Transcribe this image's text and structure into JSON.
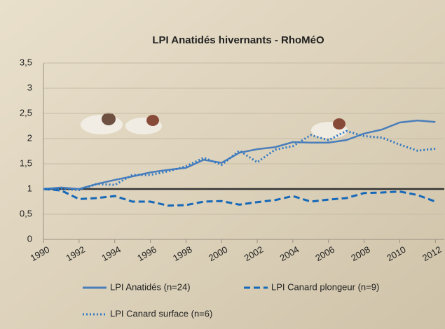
{
  "chart_data": {
    "type": "line",
    "title": "LPI Anatidés hivernants - RhoMéO",
    "x": [
      1990,
      1991,
      1992,
      1993,
      1994,
      1995,
      1996,
      1997,
      1998,
      1999,
      2000,
      2001,
      2002,
      2003,
      2004,
      2005,
      2006,
      2007,
      2008,
      2009,
      2010,
      2011,
      2012
    ],
    "series": [
      {
        "name": "LPI Anatidés (n=24)",
        "color": "#4a7ebb",
        "dash": "solid",
        "values": [
          1.0,
          1.03,
          1.0,
          1.1,
          1.18,
          1.25,
          1.33,
          1.38,
          1.42,
          1.58,
          1.52,
          1.72,
          1.79,
          1.83,
          1.93,
          1.92,
          1.92,
          1.97,
          2.1,
          2.18,
          2.32,
          2.36,
          2.33
        ]
      },
      {
        "name": "LPI Canard plongeur (n=9)",
        "color": "#1668b8",
        "dash": "dashed",
        "values": [
          1.0,
          0.97,
          0.8,
          0.82,
          0.86,
          0.75,
          0.75,
          0.67,
          0.68,
          0.75,
          0.76,
          0.69,
          0.74,
          0.78,
          0.86,
          0.75,
          0.79,
          0.82,
          0.92,
          0.93,
          0.95,
          0.88,
          0.75
        ]
      },
      {
        "name": "LPI Canard surface (n=6)",
        "color": "#2f78c4",
        "dash": "dotted",
        "values": [
          1.0,
          1.0,
          0.98,
          1.1,
          1.08,
          1.28,
          1.28,
          1.35,
          1.45,
          1.62,
          1.48,
          1.76,
          1.53,
          1.78,
          1.85,
          2.07,
          1.97,
          2.15,
          2.05,
          2.02,
          1.88,
          1.76,
          1.8
        ]
      }
    ],
    "xlim": [
      1990,
      2012.5
    ],
    "xticks": [
      1990,
      1992,
      1994,
      1996,
      1998,
      2000,
      2002,
      2004,
      2006,
      2008,
      2010,
      2012
    ],
    "ylim": [
      0,
      3.5
    ],
    "yticks": [
      0,
      {
        "value": 0.5,
        "label": "0,5"
      },
      1,
      {
        "value": 1.5,
        "label": "1,5"
      },
      2,
      {
        "value": 2.5,
        "label": "2,5"
      },
      3,
      {
        "value": 3.5,
        "label": "3,5"
      }
    ],
    "reference_line": 1,
    "grid": true
  }
}
